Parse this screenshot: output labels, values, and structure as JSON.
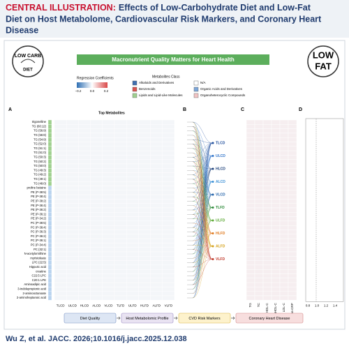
{
  "header": {
    "label": "CENTRAL ILLUSTRATION:",
    "title_line1": "Effects of Low-Carbohydrate Diet and Low-Fat",
    "title_line2": "Diet on Host Metabolome, Cardiovascular Risk Markers, and Coronary Heart",
    "title_line3": "Disease"
  },
  "logos": {
    "left_top": "LOW CARB",
    "left_bottom": "DIET",
    "right_line1": "LOW",
    "right_line2": "FAT"
  },
  "banner": "Macronutrient Quality Matters for Heart Health",
  "legend": {
    "coef_title": "Regression Coefficients",
    "coef_ticks": [
      "−0.2",
      "0.0",
      "0.2"
    ],
    "class_title": "Metabolites Class",
    "classes": [
      {
        "name": "Alkaloids and Derivatives",
        "color": "#3f6fb0"
      },
      {
        "name": "N/A",
        "color": "#ffffff"
      },
      {
        "name": "Benzenoids",
        "color": "#d9534f"
      },
      {
        "name": "Organic Acids and Derivatives",
        "color": "#7da7d9"
      },
      {
        "name": "Lipids and Lipid-Like Molecules",
        "color": "#9fd08f"
      },
      {
        "name": "Organoheterocyclic Compounds",
        "color": "#f2c4c4"
      }
    ]
  },
  "panels": {
    "a": "A",
    "b": "B",
    "c": "C",
    "d": "D"
  },
  "panel_a": {
    "title": "Top Metabolites",
    "rows": [
      "trigonelline",
      "TG (60:12)",
      "TG (56:9)",
      "TG (56:8)",
      "TG (54:9)",
      "TG (52:0)",
      "TG (51:1)",
      "TG (51:0)",
      "TG (50:3)",
      "TG (50:2)",
      "TG (50:0)",
      "TG (49:3)",
      "TG (49:2)",
      "TG (49:1)",
      "TG (48:0)",
      "proline betaine",
      "PE (P-38:5)",
      "PE (P-38:4)",
      "PE (P-38:2)",
      "PE (P-36:4)",
      "PE (P-36:2)",
      "PE (P-36:1)",
      "PE (P-34:2)",
      "PC (P-38:5)",
      "PC (P-38:4)",
      "PC (P-36:3)",
      "PC (P-36:2)",
      "PC (P-36:1)",
      "PC (P-34:4)",
      "PC (32:1)",
      "N-acetylornithine",
      "myristoleate",
      "LPC (22:5)",
      "Hippuric acid",
      "creatine",
      "C22:5 LPC",
      "C20:1 LPE",
      "Aminoadipic acid",
      "3-indolepropionic acid",
      "2-aminooctanoate",
      "2-aminoheptanoic acid"
    ],
    "columns": [
      "TLCD",
      "ULCD",
      "HLCD",
      "ALCD",
      "VLCD",
      "TLFD",
      "ULFD",
      "HLFD",
      "ALFD",
      "VLFD"
    ]
  },
  "panel_b": {
    "labels": [
      {
        "name": "TLCD",
        "color": "#1f4e9c"
      },
      {
        "name": "ULCD",
        "color": "#2f73c9"
      },
      {
        "name": "HLCD",
        "color": "#1b3f7a"
      },
      {
        "name": "ALCD",
        "color": "#3a8fd6"
      },
      {
        "name": "VLCD",
        "color": "#1d5fa8"
      },
      {
        "name": "TLFD",
        "color": "#2e8b3a"
      },
      {
        "name": "ULFD",
        "color": "#5aa832"
      },
      {
        "name": "HLFD",
        "color": "#e07a1f"
      },
      {
        "name": "ALFD",
        "color": "#d4a017"
      },
      {
        "name": "VLFD",
        "color": "#c0392b"
      }
    ]
  },
  "panel_c": {
    "columns": [
      "TG",
      "TC",
      "HDL-C",
      "nonHDL-C",
      "LDL-C",
      "hs-CRP"
    ]
  },
  "panel_d": {
    "ticks": [
      "0.8",
      "1.0",
      "1.2",
      "1.4"
    ]
  },
  "flow": [
    "Diet Quality",
    "Host Metabolomic Profile",
    "CVD Risk Markers",
    "Coronary Heart Disease"
  ],
  "citation": "Wu Z, et al. JACC. 2026;10.1016/j.jacc.2025.12.038"
}
